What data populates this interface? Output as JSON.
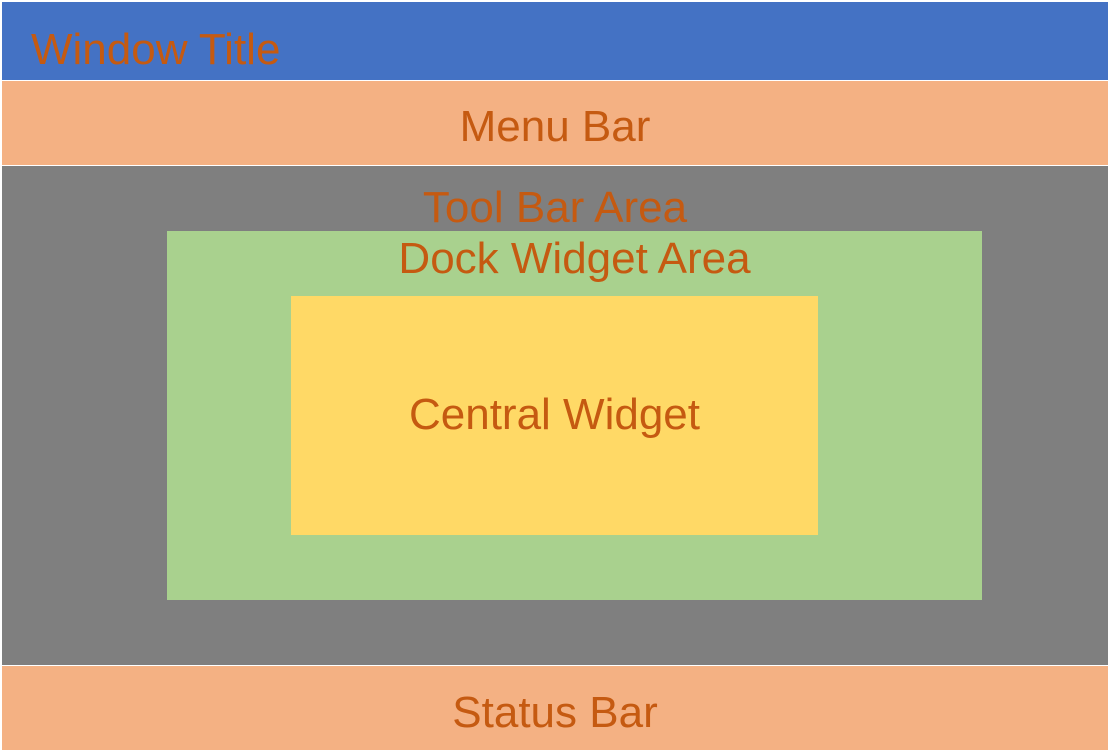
{
  "window_title": {
    "label": "Window Title",
    "color": "#4472c4"
  },
  "menu_bar": {
    "label": "Menu Bar",
    "color": "#f4b183"
  },
  "toolbar_area": {
    "label": "Tool Bar Area",
    "color": "#7f7f7f"
  },
  "dock_widget_area": {
    "label": "Dock Widget Area",
    "color": "#a9d18e"
  },
  "central_widget": {
    "label": "Central Widget",
    "color": "#ffd966"
  },
  "status_bar": {
    "label": "Status Bar",
    "color": "#f4b183"
  },
  "text_color": "#c55a11"
}
